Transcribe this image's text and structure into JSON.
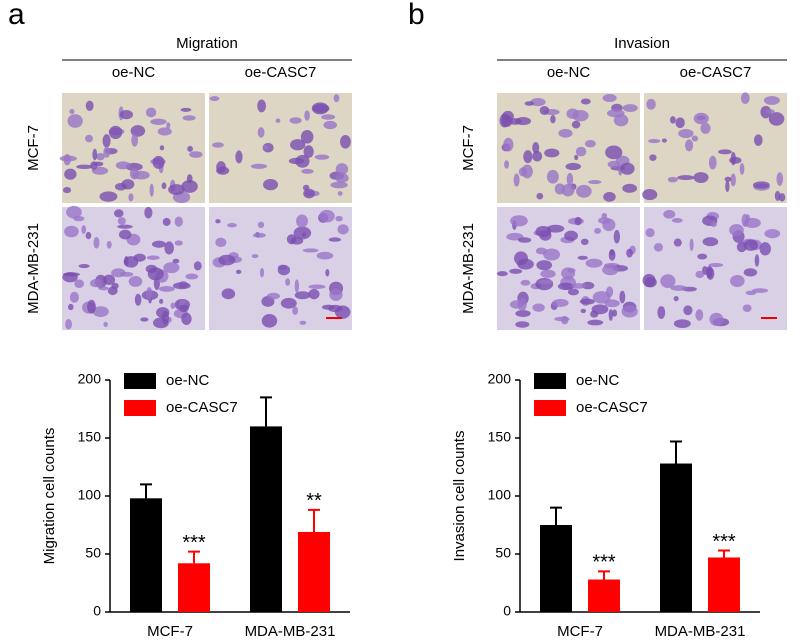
{
  "panels": [
    {
      "label": "a",
      "title": "Migration",
      "columns": [
        "oe-NC",
        "oe-CASC7"
      ],
      "rows": [
        "MCF-7",
        "MDA-MB-231"
      ]
    },
    {
      "label": "b",
      "title": "Invasion",
      "columns": [
        "oe-NC",
        "oe-CASC7"
      ],
      "rows": [
        "MCF-7",
        "MDA-MB-231"
      ]
    }
  ],
  "chart_data": [
    {
      "type": "bar",
      "ylabel": "Migration cell counts",
      "categories": [
        "MCF-7",
        "MDA-MB-231"
      ],
      "series": [
        {
          "name": "oe-NC",
          "color": "#000000",
          "values": [
            98,
            160
          ],
          "errors": [
            12,
            25
          ]
        },
        {
          "name": "oe-CASC7",
          "color": "#ff0000",
          "values": [
            42,
            69
          ],
          "errors": [
            10,
            19
          ],
          "annotations": [
            "***",
            "**"
          ]
        }
      ],
      "ylim": [
        0,
        200
      ],
      "yticks": [
        0,
        50,
        100,
        150,
        200
      ],
      "legend": "upper left"
    },
    {
      "type": "bar",
      "ylabel": "Invasion cell counts",
      "categories": [
        "MCF-7",
        "MDA-MB-231"
      ],
      "series": [
        {
          "name": "oe-NC",
          "color": "#000000",
          "values": [
            75,
            128
          ],
          "errors": [
            15,
            19
          ]
        },
        {
          "name": "oe-CASC7",
          "color": "#ff0000",
          "values": [
            28,
            47
          ],
          "errors": [
            7,
            6
          ],
          "annotations": [
            "***",
            "***"
          ]
        }
      ],
      "ylim": [
        0,
        200
      ],
      "yticks": [
        0,
        50,
        100,
        150,
        200
      ],
      "legend": "upper left"
    }
  ]
}
